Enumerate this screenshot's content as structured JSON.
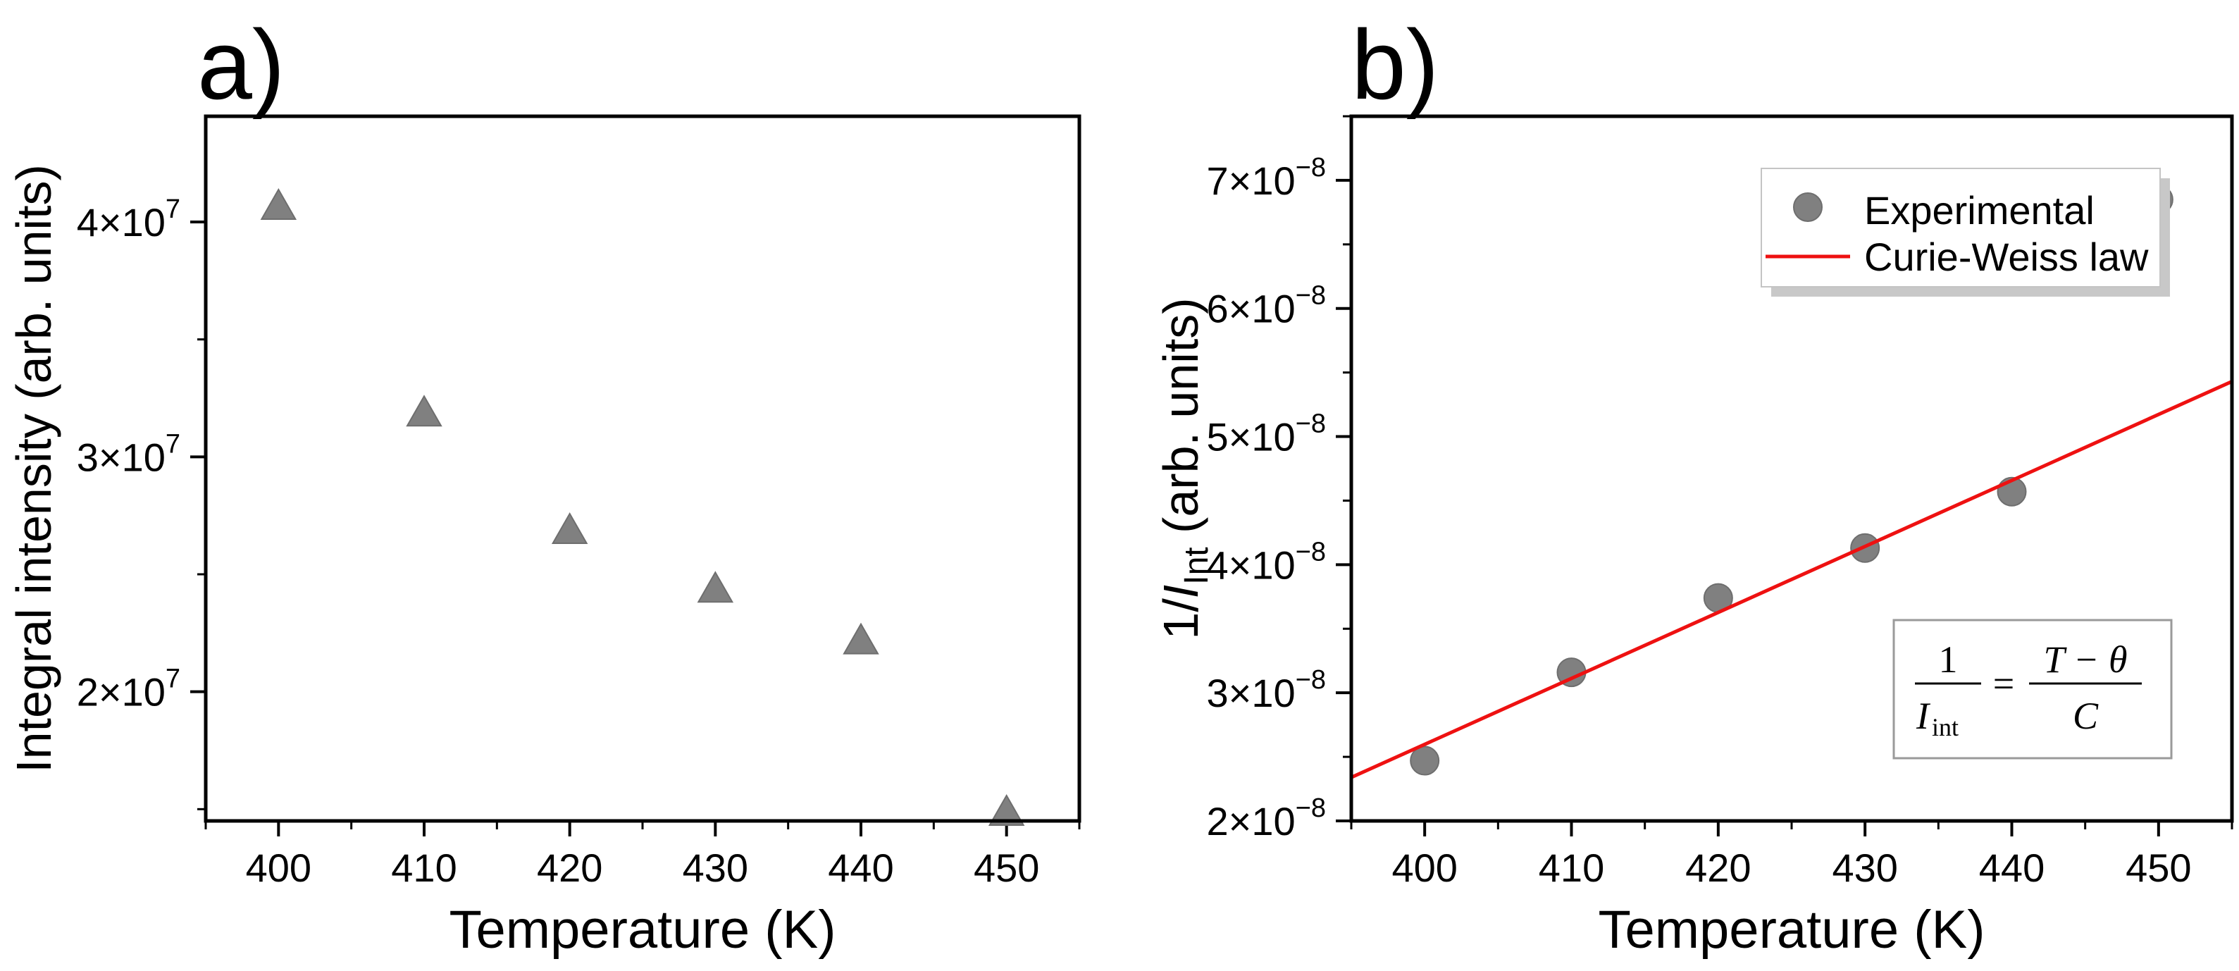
{
  "chart_data": [
    {
      "type": "scatter",
      "panel_label": "a)",
      "xlabel": "Temperature (K)",
      "ylabel": "Integral intensity (arb. units)",
      "xlim": [
        395,
        455
      ],
      "ylim": [
        14500000,
        44500000
      ],
      "x_ticks": [
        400,
        410,
        420,
        430,
        440,
        450
      ],
      "x_tick_labels": [
        "400",
        "410",
        "420",
        "430",
        "440",
        "450"
      ],
      "y_ticks": [
        20000000,
        30000000,
        40000000
      ],
      "y_tick_mantissa": [
        "2×10",
        "3×10",
        "4×10"
      ],
      "y_tick_exponent": [
        "7",
        "7",
        "7"
      ],
      "series": [
        {
          "name": "Integral intensity",
          "marker": "triangle",
          "color": "#808080",
          "x": [
            400,
            410,
            420,
            430,
            440,
            450
          ],
          "y": [
            40600000,
            31800000,
            26800000,
            24300000,
            22100000,
            14800000
          ]
        }
      ]
    },
    {
      "type": "scatter",
      "panel_label": "b)",
      "xlabel": "Temperature (K)",
      "ylabel_parts": [
        "1/",
        "I",
        "Int",
        " (arb. units)"
      ],
      "xlim": [
        395,
        455
      ],
      "ylim": [
        2e-08,
        7.5e-08
      ],
      "x_ticks": [
        400,
        410,
        420,
        430,
        440,
        450
      ],
      "x_tick_labels": [
        "400",
        "410",
        "420",
        "430",
        "440",
        "450"
      ],
      "y_ticks": [
        2e-08,
        3e-08,
        4e-08,
        5e-08,
        6e-08,
        7e-08
      ],
      "y_tick_mantissa": [
        "2×10",
        "3×10",
        "4×10",
        "5×10",
        "6×10",
        "7×10"
      ],
      "y_tick_exponent": [
        "−8",
        "−8",
        "−8",
        "−8",
        "−8",
        "−8"
      ],
      "series": [
        {
          "name": "Experimental",
          "marker": "circle",
          "color": "#808080",
          "x": [
            400,
            410,
            420,
            430,
            440,
            450
          ],
          "y": [
            2.47e-08,
            3.16e-08,
            3.74e-08,
            4.13e-08,
            4.57e-08,
            6.85e-08
          ]
        },
        {
          "name": "Curie-Weiss law",
          "type": "line",
          "color": "#ee1111",
          "x": [
            395,
            455
          ],
          "y": [
            2.34e-08,
            5.43e-08
          ]
        }
      ],
      "legend": {
        "position": "top-right",
        "entries": [
          "Experimental",
          "Curie-Weiss law"
        ]
      },
      "annotation": {
        "equation_numerator_left": "1",
        "equation_denominator_left": "I",
        "equation_denominator_sub": "int",
        "equation_equals": "=",
        "equation_numerator_right": "T − θ",
        "equation_denominator_right": "C"
      }
    }
  ]
}
